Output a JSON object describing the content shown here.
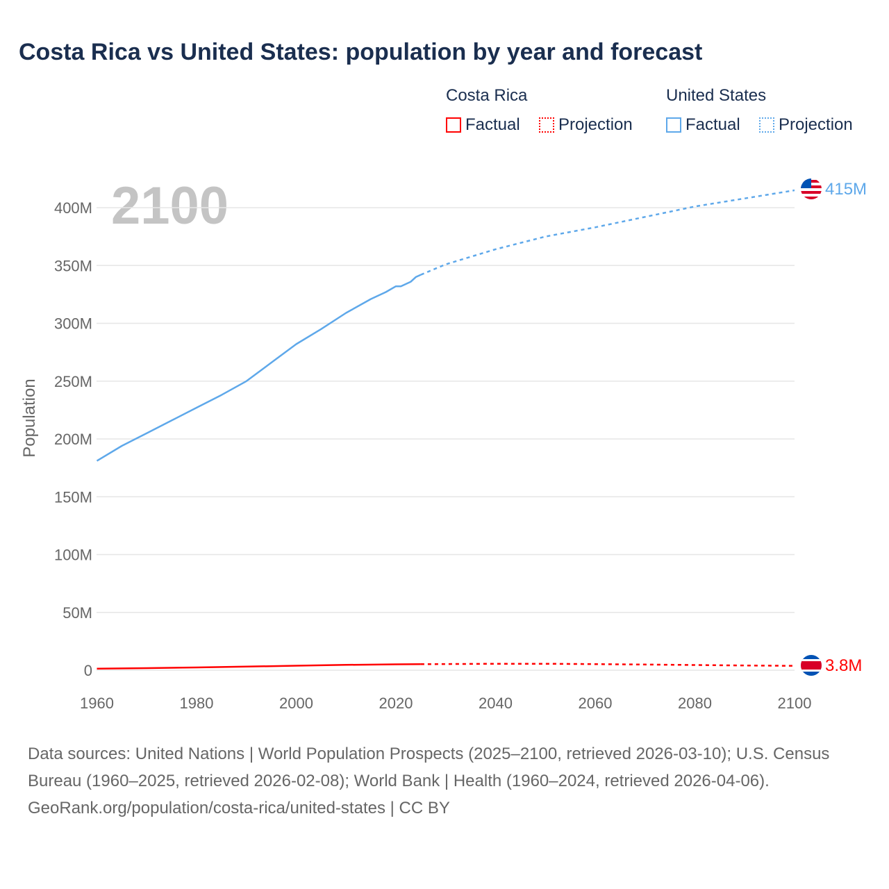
{
  "title": "Costa Rica vs United States: population by year and forecast",
  "legend": {
    "groups": [
      {
        "name": "Costa Rica",
        "factual": "Factual",
        "projection": "Projection",
        "color": "#ff0000"
      },
      {
        "name": "United States",
        "factual": "Factual",
        "projection": "Projection",
        "color": "#5ea8ea"
      }
    ]
  },
  "year_watermark": "2100",
  "end_labels": {
    "united_states": "415M",
    "costa_rica": "3.8M"
  },
  "flags": {
    "united_states": "us-flag-icon",
    "costa_rica": "costa-rica-flag-icon"
  },
  "chart_data": {
    "type": "line",
    "title": "Costa Rica vs United States: population by year and forecast",
    "xlabel": "",
    "ylabel": "Population",
    "xlim": [
      1960,
      2100
    ],
    "ylim": [
      0,
      420000000
    ],
    "x_ticks": [
      "1960",
      "1980",
      "2000",
      "2020",
      "2040",
      "2060",
      "2080",
      "2100"
    ],
    "y_ticks": [
      "0",
      "50M",
      "100M",
      "150M",
      "200M",
      "250M",
      "300M",
      "350M",
      "400M"
    ],
    "grid": true,
    "legend_position": "top-right",
    "series": [
      {
        "name": "United States Factual",
        "color": "#5ea8ea",
        "dashed": false,
        "x": [
          1960,
          1965,
          1970,
          1975,
          1980,
          1985,
          1990,
          1995,
          2000,
          2005,
          2010,
          2015,
          2018,
          2020,
          2021,
          2023,
          2024,
          2025
        ],
        "y": [
          181,
          194,
          205,
          216,
          227,
          238,
          250,
          266,
          282,
          295,
          309,
          321,
          327,
          332,
          332,
          336,
          340,
          342
        ]
      },
      {
        "name": "United States Projection",
        "color": "#5ea8ea",
        "dashed": true,
        "x": [
          2025,
          2030,
          2040,
          2050,
          2060,
          2070,
          2080,
          2090,
          2100
        ],
        "y": [
          342,
          351,
          364,
          375,
          383,
          392,
          401,
          408,
          415
        ]
      },
      {
        "name": "Costa Rica Factual",
        "color": "#ff0000",
        "dashed": false,
        "x": [
          1960,
          1970,
          1980,
          1990,
          2000,
          2010,
          2020,
          2025
        ],
        "y": [
          1.3,
          1.8,
          2.4,
          3.1,
          3.9,
          4.6,
          5.1,
          5.2
        ]
      },
      {
        "name": "Costa Rica Projection",
        "color": "#ff0000",
        "dashed": true,
        "x": [
          2025,
          2040,
          2050,
          2060,
          2070,
          2080,
          2090,
          2100
        ],
        "y": [
          5.2,
          5.6,
          5.6,
          5.3,
          4.9,
          4.5,
          4.1,
          3.8
        ]
      }
    ],
    "unit": "millions"
  },
  "footer": {
    "sources": "Data sources: United Nations | World Population Prospects (2025–2100, retrieved 2026-03-10); U.S. Census Bureau (1960–2025, retrieved 2026-02-08); World Bank | Health (1960–2024, retrieved 2026-04-06).",
    "credit": "GeoRank.org/population/costa-rica/united-states | CC BY"
  }
}
